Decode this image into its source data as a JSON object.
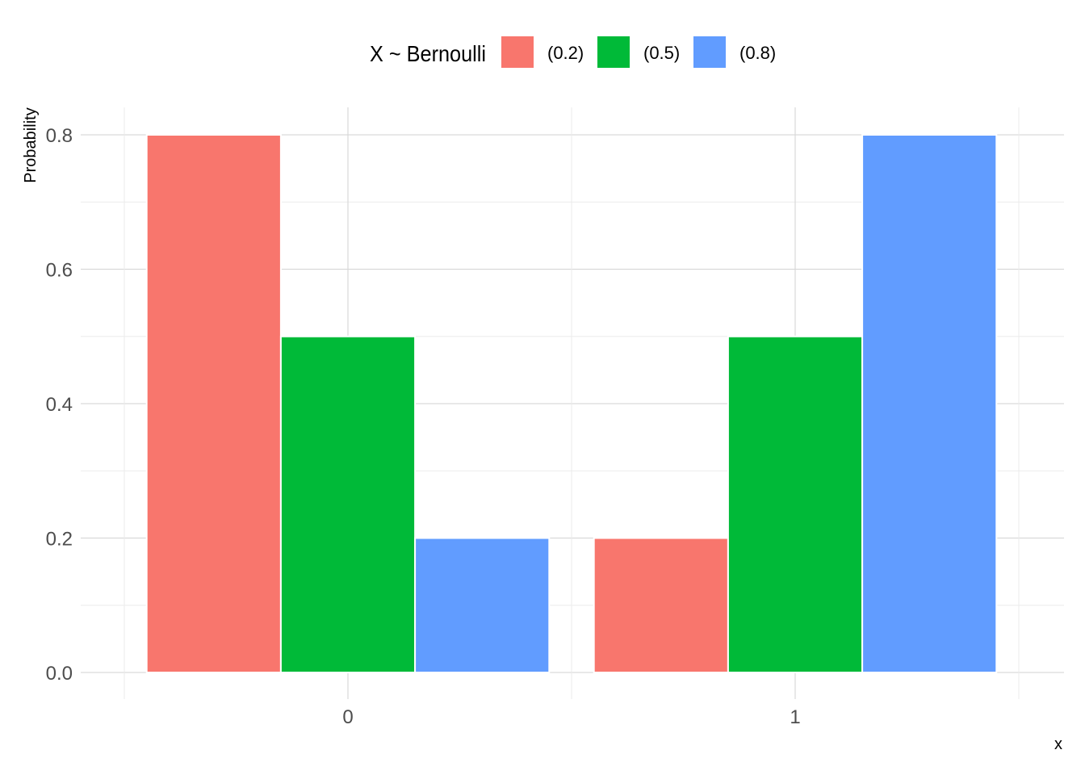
{
  "chart_data": {
    "type": "bar",
    "title": "",
    "xlabel": "x",
    "ylabel": "Probability",
    "categories": [
      "0",
      "1"
    ],
    "series": [
      {
        "name": "(0.2)",
        "color": "#F8766D",
        "values": [
          0.8,
          0.2
        ]
      },
      {
        "name": "(0.5)",
        "color": "#00BA38",
        "values": [
          0.5,
          0.5
        ]
      },
      {
        "name": "(0.8)",
        "color": "#619CFF",
        "values": [
          0.2,
          0.8
        ]
      }
    ],
    "ylim": [
      0,
      0.8
    ],
    "yticks": [
      "0.0",
      "0.2",
      "0.4",
      "0.6",
      "0.8"
    ],
    "ytick_values": [
      0,
      0.2,
      0.4,
      0.6,
      0.8
    ],
    "grid": true,
    "legend": {
      "title": "X ~ Bernoulli",
      "placement": "top"
    }
  }
}
